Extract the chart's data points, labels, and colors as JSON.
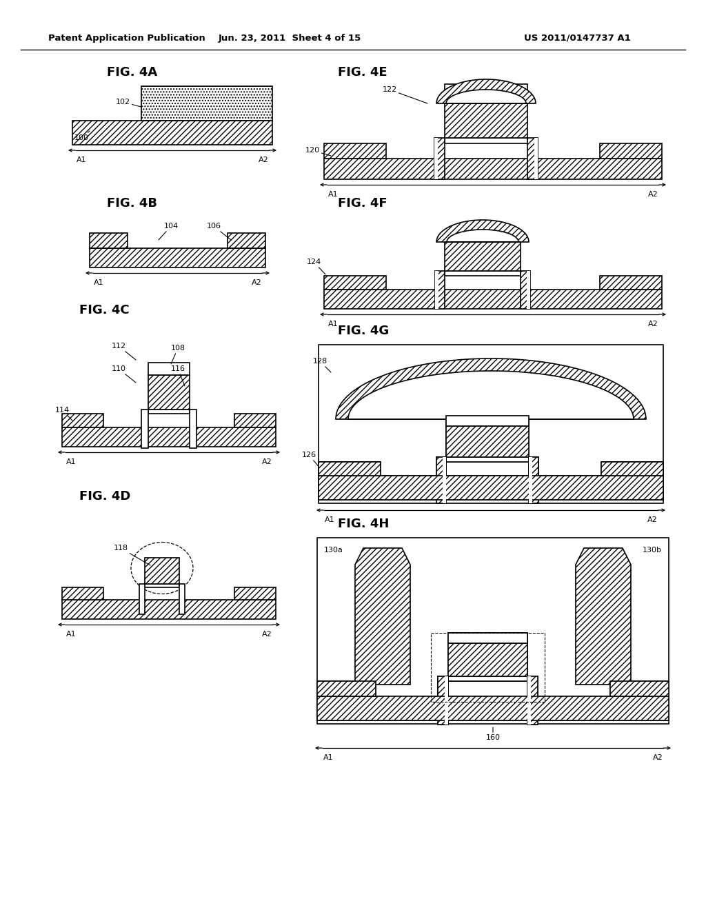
{
  "header_left": "Patent Application Publication",
  "header_mid": "Jun. 23, 2011  Sheet 4 of 15",
  "header_right": "US 2011/0147737 A1",
  "bg": "#ffffff",
  "lw": 1.2,
  "fig_labels": [
    "FIG. 4A",
    "FIG. 4B",
    "FIG. 4C",
    "FIG. 4D",
    "FIG. 4E",
    "FIG. 4F",
    "FIG. 4G",
    "FIG. 4H"
  ]
}
